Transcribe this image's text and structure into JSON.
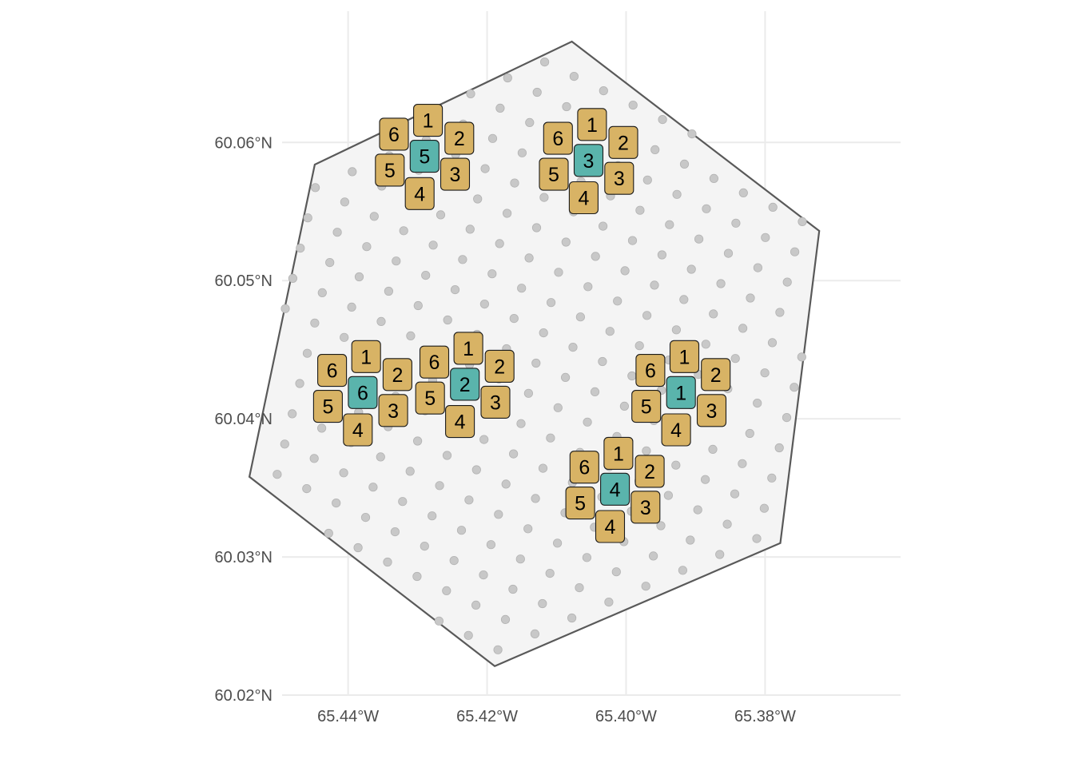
{
  "chart_data": {
    "type": "scatter",
    "title": "",
    "xlabel": "",
    "ylabel": "",
    "xlim": [
      -65.4495,
      -65.3605
    ],
    "ylim": [
      60.02,
      60.0695
    ],
    "x_ticks": [
      -65.44,
      -65.42,
      -65.4,
      -65.38
    ],
    "y_ticks": [
      60.02,
      60.03,
      60.04,
      60.05,
      60.06
    ],
    "x_tick_labels": [
      "65.44°W",
      "65.42°W",
      "65.40°W",
      "65.38°W"
    ],
    "y_tick_labels": [
      "60.02°N",
      "60.03°N",
      "60.04°N",
      "60.05°N",
      "60.06°N"
    ],
    "grid": true,
    "colors": {
      "panel_fill": "#f4f4f4",
      "boundary": "#595959",
      "dots": "#c8c8c8",
      "plot_center": "#5ab4ac",
      "plot_neighbor": "#d8b365",
      "grid": "#ebebeb"
    },
    "boundary": [
      [
        -65.4078,
        60.0673
      ],
      [
        -65.3722,
        60.0536
      ],
      [
        -65.3778,
        60.031
      ],
      [
        -65.4189,
        60.0221
      ],
      [
        -65.4542,
        60.0358
      ],
      [
        -65.4448,
        60.0584
      ]
    ],
    "lattice": {
      "origin": [
        -65.431,
        60.046
      ],
      "a": [
        0.00424,
        -0.00104
      ],
      "b": [
        0.00108,
        0.00219
      ]
    },
    "clusters": [
      {
        "center_label": "5",
        "x": -65.429,
        "y": 60.059
      },
      {
        "center_label": "3",
        "x": -65.4054,
        "y": 60.0587
      },
      {
        "center_label": "6",
        "x": -65.4379,
        "y": 60.0419
      },
      {
        "center_label": "2",
        "x": -65.4232,
        "y": 60.0425
      },
      {
        "center_label": "1",
        "x": -65.3921,
        "y": 60.0419
      },
      {
        "center_label": "4",
        "x": -65.4016,
        "y": 60.0349
      }
    ],
    "neighbor_offsets": [
      {
        "label": "1",
        "dx": 0.0005,
        "dy": 0.0026
      },
      {
        "label": "2",
        "dx": 0.005,
        "dy": 0.0013
      },
      {
        "label": "3",
        "dx": 0.0044,
        "dy": -0.0013
      },
      {
        "label": "4",
        "dx": -0.0007,
        "dy": -0.0027
      },
      {
        "label": "5",
        "dx": -0.005,
        "dy": -0.001
      },
      {
        "label": "6",
        "dx": -0.0044,
        "dy": 0.0016
      }
    ]
  }
}
